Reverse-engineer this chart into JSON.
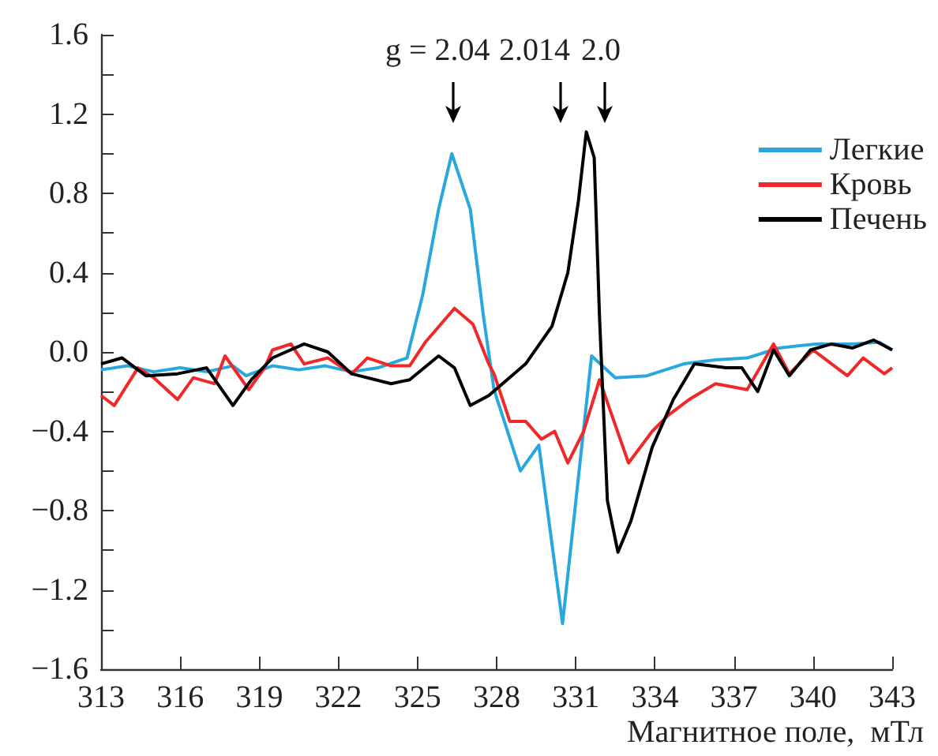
{
  "chart_data": {
    "type": "line",
    "xlabel": "Магнитное поле,  мТл",
    "xlim": [
      313,
      343
    ],
    "xticks": [
      313,
      316,
      319,
      322,
      325,
      328,
      331,
      334,
      337,
      340,
      343
    ],
    "ylim": [
      -1.6,
      1.6
    ],
    "yticks": [
      {
        "value": -1.6,
        "label": "−1.6"
      },
      {
        "value": -1.4,
        "label": null
      },
      {
        "value": -1.2,
        "label": "−1.2"
      },
      {
        "value": -1.0,
        "label": null
      },
      {
        "value": -0.8,
        "label": "−0.8"
      },
      {
        "value": -0.6,
        "label": null
      },
      {
        "value": -0.4,
        "label": "−0.4"
      },
      {
        "value": -0.2,
        "label": null
      },
      {
        "value": 0,
        "label": "0.0"
      },
      {
        "value": 0.2,
        "label": null
      },
      0.4,
      {
        "value": 0.6,
        "label": null
      },
      0.8,
      {
        "value": 1.0,
        "label": null
      },
      1.2,
      {
        "value": 1.4,
        "label": null
      },
      1.6
    ],
    "grid": false,
    "legend": "top right",
    "marker": "none",
    "line_style": "solid",
    "annotations": [
      "g = 2.04",
      "2.014",
      "2.0"
    ],
    "series": [
      {
        "name": "Легкие",
        "color": "#29a8e0",
        "x": [
          313,
          314,
          315,
          316,
          317,
          318,
          318.5,
          319.5,
          320.5,
          321.5,
          322.5,
          323.5,
          324.6,
          325.2,
          325.8,
          326.3,
          327,
          327.5,
          327.9,
          328.9,
          329.6,
          330.5,
          331.6,
          332.5,
          333.7,
          335.1,
          336.3,
          337.5,
          338.7,
          340.1,
          341.5,
          342.5,
          343
        ],
        "values": [
          -0.09,
          -0.07,
          -0.1,
          -0.08,
          -0.1,
          -0.07,
          -0.12,
          -0.07,
          -0.09,
          -0.07,
          -0.1,
          -0.08,
          -0.03,
          0.29,
          0.72,
          1.0,
          0.72,
          0.18,
          -0.19,
          -0.6,
          -0.47,
          -1.37,
          -0.02,
          -0.13,
          -0.12,
          -0.06,
          -0.04,
          -0.03,
          0.02,
          0.04,
          0.04,
          0.05,
          0.01
        ]
      },
      {
        "name": "Кровь",
        "color": "#f0282a",
        "x": [
          313,
          313.5,
          314.4,
          315,
          315.9,
          316.5,
          317.3,
          317.7,
          318.6,
          319.2,
          319.5,
          320.2,
          320.7,
          321.6,
          322.5,
          323.1,
          324,
          324.7,
          325.3,
          326.4,
          327.1,
          327.7,
          327.9,
          328.5,
          329.1,
          329.7,
          330.2,
          330.7,
          331.3,
          331.9,
          333,
          333.9,
          334.5,
          335.3,
          336.3,
          337.5,
          338.5,
          339.1,
          340,
          340.7,
          341.3,
          341.9,
          342.7,
          343
        ],
        "values": [
          -0.22,
          -0.27,
          -0.08,
          -0.13,
          -0.24,
          -0.13,
          -0.16,
          -0.02,
          -0.19,
          -0.08,
          0.01,
          0.04,
          -0.06,
          -0.03,
          -0.11,
          -0.03,
          -0.07,
          -0.07,
          0.05,
          0.22,
          0.14,
          -0.06,
          -0.11,
          -0.35,
          -0.35,
          -0.44,
          -0.4,
          -0.56,
          -0.4,
          -0.14,
          -0.56,
          -0.4,
          -0.32,
          -0.24,
          -0.16,
          -0.19,
          0.04,
          -0.11,
          0.01,
          -0.06,
          -0.12,
          -0.03,
          -0.11,
          -0.08
        ]
      },
      {
        "name": "Печень",
        "color": "#000000",
        "x": [
          313,
          313.8,
          314.7,
          315.9,
          317,
          318,
          318.7,
          319.5,
          320.7,
          321.6,
          322.5,
          324,
          324.7,
          325.8,
          326.4,
          327,
          327.7,
          329.1,
          330.1,
          330.7,
          331.1,
          331.4,
          331.7,
          331.9,
          332.2,
          332.6,
          333.1,
          333.9,
          334.7,
          335.5,
          336.7,
          337.3,
          337.9,
          338.5,
          339.1,
          339.9,
          340.7,
          341.5,
          342.3,
          343
        ],
        "values": [
          -0.06,
          -0.03,
          -0.12,
          -0.11,
          -0.08,
          -0.27,
          -0.14,
          -0.03,
          0.04,
          0.0,
          -0.11,
          -0.16,
          -0.14,
          -0.02,
          -0.08,
          -0.27,
          -0.22,
          -0.06,
          0.13,
          0.4,
          0.76,
          1.11,
          0.98,
          0.18,
          -0.75,
          -1.01,
          -0.85,
          -0.48,
          -0.24,
          -0.06,
          -0.08,
          -0.08,
          -0.2,
          0.01,
          -0.12,
          0.01,
          0.04,
          0.02,
          0.06,
          0.01
        ]
      }
    ]
  }
}
